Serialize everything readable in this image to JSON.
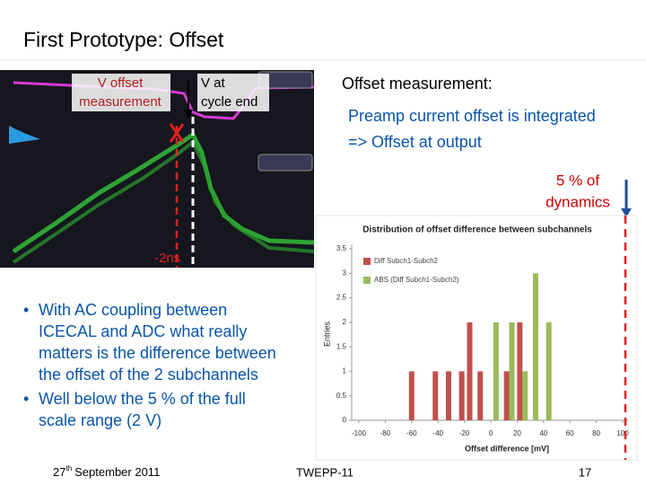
{
  "header": {
    "title": "First Prototype: Offset"
  },
  "scope": {
    "v_offset": [
      "V offset",
      "measurement"
    ],
    "v_cycle_end": [
      "V at",
      "cycle end"
    ],
    "shift": "-2ns"
  },
  "notes": {
    "heading": "Offset measurement:",
    "lines": [
      "Preamp current offset is integrated",
      "=> Offset at output"
    ],
    "callout": [
      "5 % of",
      "dynamics"
    ]
  },
  "bullets": [
    {
      "lines": [
        "With AC coupling between",
        "ICECAL and ADC what really",
        "matters is the difference between",
        "the offset of the 2 subchannels"
      ]
    },
    {
      "lines": [
        "Well below the 5 % of the full",
        "scale range (2 V)"
      ]
    }
  ],
  "chart_data": {
    "type": "bar",
    "title": "Distribution of offset difference between subchannels",
    "xlabel": "Offset difference [mV]",
    "ylabel": "Entries",
    "xlim": [
      -100,
      100
    ],
    "ylim": [
      0,
      3.5
    ],
    "xticks": [
      -100,
      -80,
      -60,
      -40,
      -20,
      0,
      20,
      40,
      60,
      80,
      100
    ],
    "yticks": [
      0,
      0.5,
      1,
      1.5,
      2,
      2.5,
      3,
      3.5
    ],
    "series": [
      {
        "name": "Diff Subch1-Subch2",
        "color": "#c0504d",
        "x": [
          -60,
          -42,
          -32,
          -22,
          -16,
          -8,
          12,
          22
        ],
        "values": [
          1,
          1,
          1,
          1,
          2,
          1,
          1,
          2
        ]
      },
      {
        "name": "ABS (Diff Subch1-Subch2)",
        "color": "#9bbb59",
        "x": [
          4,
          16,
          26,
          34,
          44
        ],
        "values": [
          2,
          2,
          1,
          3,
          2
        ]
      }
    ]
  },
  "footer": {
    "date_day": "27",
    "date_suffix": "th",
    "date_rest": "September 2011",
    "event": "TWEPP-11",
    "page": "17"
  }
}
